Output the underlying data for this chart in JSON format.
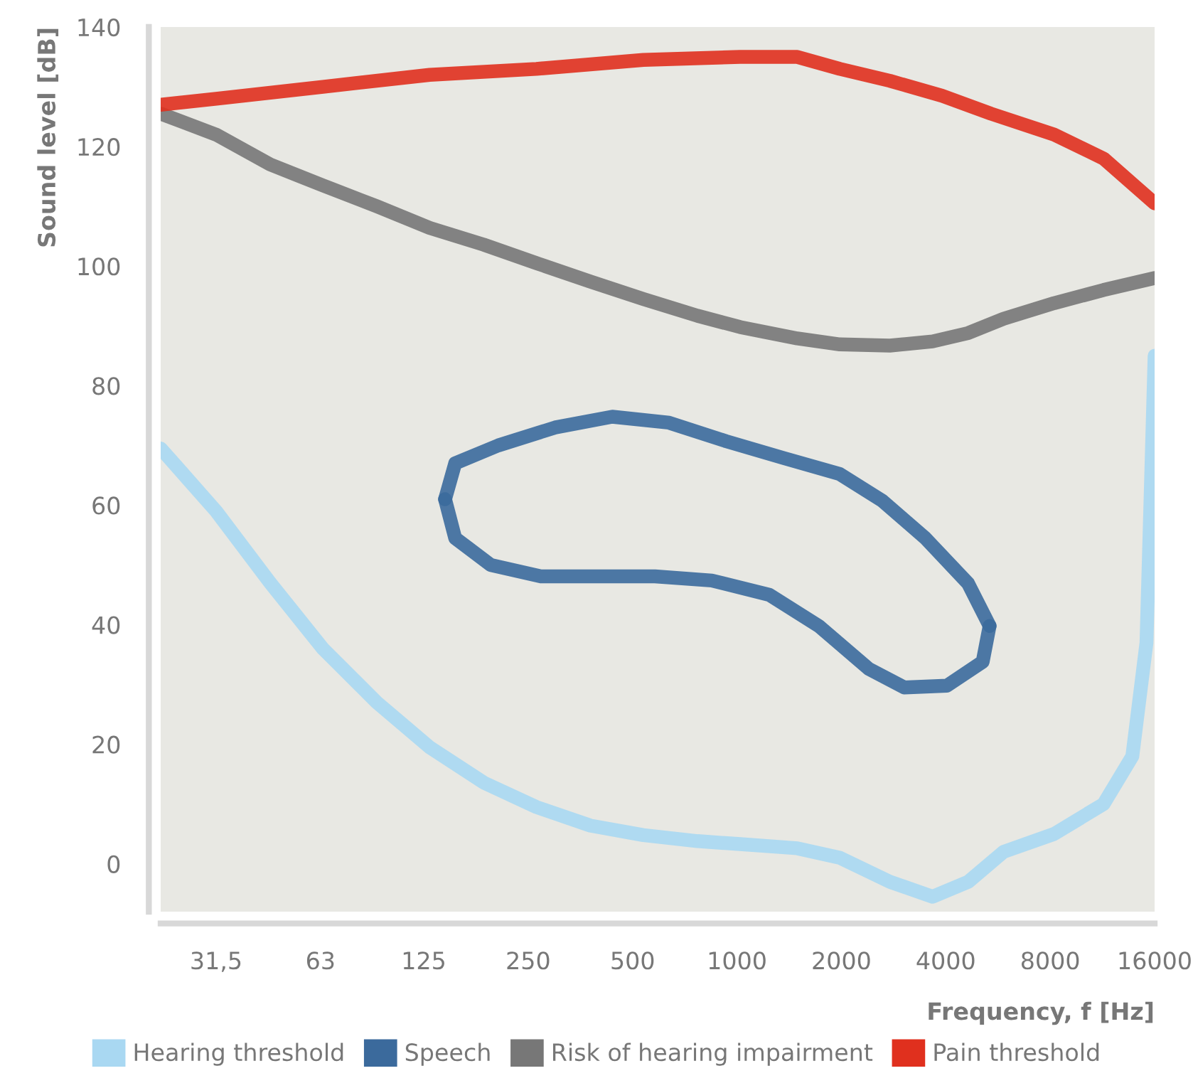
{
  "chart_data": {
    "type": "line",
    "xlabel": "Frequency, f [Hz]",
    "ylabel": "Sound level [dB]",
    "log": "x",
    "xlim": [
      21.8,
      16000
    ],
    "ylim": [
      -8,
      140
    ],
    "xticks": [
      {
        "value": 31.5,
        "label": "31,5"
      },
      63,
      125,
      250,
      500,
      1000,
      2000,
      4000,
      8000,
      16000
    ],
    "yticks": [
      0,
      20,
      40,
      60,
      80,
      100,
      120,
      140
    ],
    "grid": false,
    "legend": "bottom",
    "marker": "none",
    "line_style": "solid",
    "series": [
      {
        "name": "Hearing threshold",
        "color": "#a9d8f2",
        "x": [
          21.8,
          31.5,
          45.1,
          64,
          91.6,
          130,
          186,
          264,
          378,
          537,
          769,
          1021,
          1493,
          1980,
          2759,
          3664,
          4644,
          5871,
          8210,
          11400,
          13800,
          15160,
          16000
        ],
        "values": [
          69.5,
          59,
          47,
          36,
          27,
          19.5,
          13.6,
          9.5,
          6.4,
          4.8,
          3.8,
          3.3,
          2.6,
          1,
          -3,
          -5.5,
          -3,
          2,
          5,
          10,
          18,
          37,
          85
        ]
      },
      {
        "name": "Speech",
        "color": "#3b6a9c",
        "x": [
          144,
          154,
          205,
          299,
          437,
          637,
          931,
          1360,
          1980,
          2630,
          3490,
          4640,
          5350
        ],
        "values": [
          61,
          67,
          70,
          73,
          74.8,
          73.8,
          70.7,
          67.9,
          65.2,
          60.7,
          54.5,
          46.9,
          39.8
        ]
      },
      {
        "color": "#3b6a9c",
        "x": [
          144,
          154,
          195,
          272,
          397,
          580,
          846,
          1240,
          1720,
          2400,
          3040,
          4030,
          5110,
          5350
        ],
        "values": [
          61,
          54.5,
          50,
          48.1,
          48.1,
          48.1,
          47.4,
          45,
          39.8,
          32.6,
          29.5,
          29.8,
          33.8,
          39.8
        ]
      },
      {
        "name": "Risk of hearing impairment",
        "color": "#777777",
        "x": [
          21.8,
          31.5,
          45.1,
          64,
          91.6,
          130,
          186,
          264,
          378,
          537,
          769,
          1021,
          1493,
          1980,
          2759,
          3664,
          4644,
          5871,
          8210,
          11400,
          16000
        ],
        "values": [
          125.5,
          122,
          117,
          113.5,
          110,
          106.4,
          103.6,
          100.5,
          97.4,
          94.5,
          91.7,
          89.8,
          87.9,
          86.9,
          86.7,
          87.4,
          88.8,
          91.2,
          93.8,
          96,
          98
        ]
      },
      {
        "name": "Pain threshold",
        "color": "#e0301e",
        "x": [
          21.8,
          31.5,
          64,
          130,
          264,
          537,
          1021,
          1493,
          1980,
          2759,
          3900,
          5400,
          8210,
          11400,
          16000
        ],
        "values": [
          127,
          128,
          130,
          132,
          133,
          134.5,
          135,
          135,
          133,
          131,
          128.5,
          125.5,
          122,
          118,
          110.5
        ]
      }
    ]
  }
}
